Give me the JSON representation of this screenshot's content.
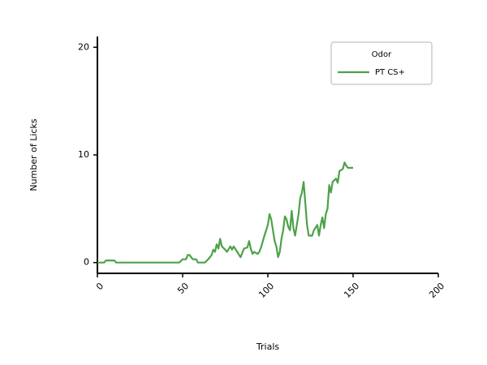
{
  "chart_data": {
    "type": "line",
    "x_label": "Trials",
    "y_label": "Number of Licks",
    "legend_title": "Odor",
    "legend_position": "upper right",
    "xlim": [
      0,
      200
    ],
    "xticks": [
      0,
      50,
      100,
      150,
      200
    ],
    "ylim": [
      -1,
      21
    ],
    "yticks": [
      0,
      10,
      20
    ],
    "grid": false,
    "series": [
      {
        "name": "PT CS+",
        "color": "#4ca24a",
        "x": [
          0,
          4,
          5,
          10,
          11,
          48,
          50,
          52,
          53,
          54,
          56,
          58,
          59,
          63,
          65,
          67,
          68,
          69,
          70,
          71,
          72,
          73,
          75,
          76,
          78,
          79,
          80,
          82,
          84,
          86,
          88,
          89,
          90,
          91,
          92,
          94,
          95,
          96,
          98,
          100,
          101,
          102,
          103,
          104,
          105,
          106,
          107,
          108,
          109,
          110,
          111,
          112,
          113,
          114,
          115,
          116,
          117,
          118,
          119,
          120,
          121,
          122,
          123,
          124,
          126,
          127,
          129,
          130,
          131,
          132,
          133,
          134,
          135,
          136,
          137,
          138,
          140,
          141,
          142,
          144,
          145,
          146,
          147,
          150
        ],
        "values": [
          0,
          0,
          0.2,
          0.2,
          0,
          0,
          0.3,
          0.3,
          0.7,
          0.7,
          0.3,
          0.3,
          0,
          0,
          0.3,
          0.7,
          1.2,
          1,
          1.7,
          1.3,
          2.2,
          1.5,
          1.2,
          1,
          1.5,
          1.2,
          1.5,
          1,
          0.5,
          1.3,
          1.4,
          2,
          1.3,
          0.8,
          1,
          0.8,
          1,
          1.4,
          2.5,
          3.5,
          4.5,
          4,
          3,
          2,
          1.5,
          0.5,
          1,
          2.2,
          3,
          4.3,
          4,
          3.3,
          3,
          4.8,
          3.2,
          2.5,
          3.5,
          4.5,
          6,
          6.5,
          7.5,
          5.5,
          3.5,
          2.5,
          2.5,
          3,
          3.5,
          2.5,
          3.5,
          4.2,
          3.2,
          4.5,
          5,
          7.2,
          6.5,
          7.5,
          7.8,
          7.4,
          8.5,
          8.7,
          9.3,
          9,
          8.8,
          8.8
        ]
      }
    ]
  }
}
